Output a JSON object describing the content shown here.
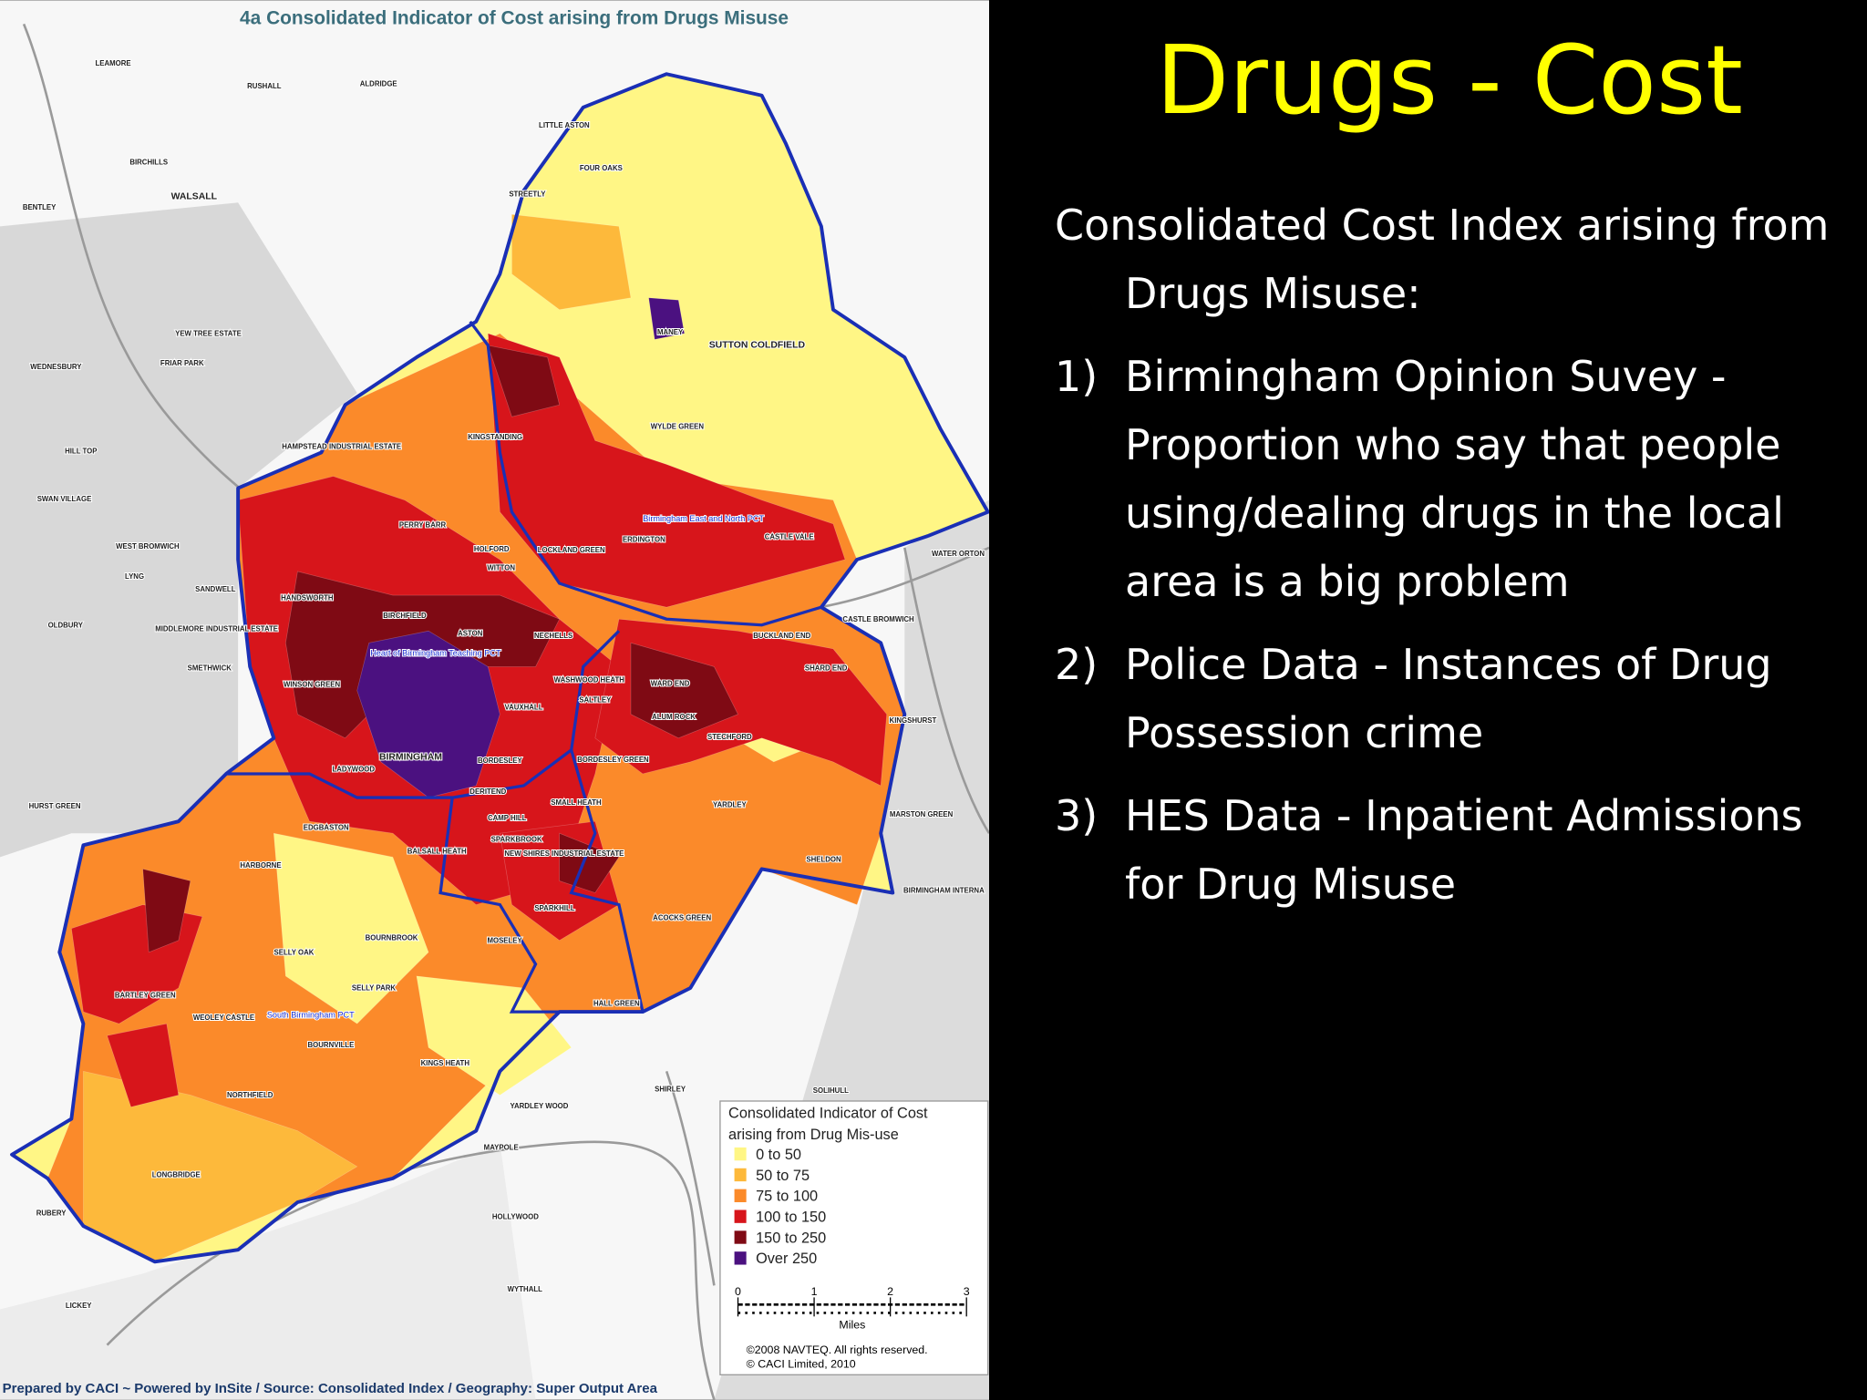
{
  "map": {
    "title": "4a Consolidated Indicator of Cost arising from Drugs Misuse",
    "places": [
      "LEAMORE",
      "RUSHALL",
      "ALDRIDGE",
      "LITTLE ASTON",
      "BIRCHILLS",
      "WALSALL",
      "FOUR OAKS",
      "BENTLEY",
      "STREETLY",
      "YEW TREE ESTATE",
      "MANEY",
      "SUTTON COLDFIELD",
      "WEDNESBURY",
      "FRIAR PARK",
      "WYLDE GREEN",
      "HAMPSTEAD INDUSTRIAL ESTATE",
      "KINGSTANDING",
      "HILL TOP",
      "SWAN VILLAGE",
      "PERRY BARR",
      "ERDINGTON",
      "CASTLE VALE",
      "WEST BROMWICH",
      "HOLFORD",
      "LOCKLAND GREEN",
      "WITTON",
      "LYNG",
      "SANDWELL",
      "HANDSWORTH",
      "OLDBURY",
      "MIDDLEMORE INDUSTRIAL ESTATE",
      "CASTLE BROMWICH",
      "BIRCHFIELD",
      "ASTON",
      "NECHELLS",
      "BUCKLAND END",
      "SMETHWICK",
      "SHARD END",
      "WINSON GREEN",
      "WASHWOOD HEATH",
      "WARD END",
      "SALTLEY",
      "VAUXHALL",
      "ALUM ROCK",
      "KINGSHURST",
      "STECHFORD",
      "BIRMINGHAM",
      "BORDESLEY",
      "BORDESLEY GREEN",
      "HURST GREEN",
      "LADYWOOD",
      "DERITEND",
      "SMALL HEATH",
      "YARDLEY",
      "EDGBASTON",
      "CAMP HILL",
      "SPARKBROOK",
      "BALSALL HEATH",
      "NEW SHIRES INDUSTRIAL ESTATE",
      "SHELDON",
      "HARBORNE",
      "SPARKHILL",
      "ACOCKS GREEN",
      "BOURNBROOK",
      "MOSELEY",
      "SELLY OAK",
      "BARTLEY GREEN",
      "SELLY PARK",
      "HALL GREEN",
      "WEOLEY CASTLE",
      "BOURNVILLE",
      "KINGS HEATH",
      "NORTHFIELD",
      "SHIRLEY",
      "SOLIHULL",
      "YARDLEY WOOD",
      "MAYPOLE",
      "LONGBRIDGE",
      "HOLLYWOOD",
      "RUBERY",
      "WYTHALL",
      "LICKEY",
      "WATER ORTON",
      "MARSTON GREEN",
      "BIRMINGHAM INTERNA"
    ],
    "pct_labels": [
      "Birmingham East and North PCT",
      "Heart of Birmingham Teaching PCT",
      "South Birmingham PCT"
    ],
    "legend": {
      "title_lines": [
        "Consolidated Indicator of Cost",
        "arising from Drug Mis-use"
      ],
      "items": [
        {
          "label": "0 to 50",
          "color": "#fff685"
        },
        {
          "label": "50 to 75",
          "color": "#fdb93b"
        },
        {
          "label": "75 to 100",
          "color": "#fb8a2a"
        },
        {
          "label": "100 to 150",
          "color": "#d7151b"
        },
        {
          "label": "150 to 250",
          "color": "#7f0a14"
        },
        {
          "label": "Over 250",
          "color": "#4b1180"
        }
      ]
    },
    "scale_ticks": [
      0,
      1,
      2,
      3
    ],
    "scale_unit": "Miles",
    "copyright": [
      "©2008 NAVTEQ. All rights reserved.",
      "© CACI Limited, 2010"
    ],
    "footer": "Prepared by CACI ~ Powered by InSite /  Source:  Consolidated Index  /  Geography:  Super Output Area"
  },
  "slide": {
    "title": "Drugs - Cost",
    "intro": "Consolidated Cost Index arising from Drugs Misuse:",
    "items": [
      {
        "number": "1)",
        "text": "Birmingham Opinion Suvey - Proportion who say that people using/dealing drugs in the local area is a big problem"
      },
      {
        "number": "2)",
        "text": "Police Data - Instances of Drug Possession crime"
      },
      {
        "number": "3)",
        "text": "HES Data - Inpatient Admissions for Drug Misuse"
      }
    ]
  }
}
